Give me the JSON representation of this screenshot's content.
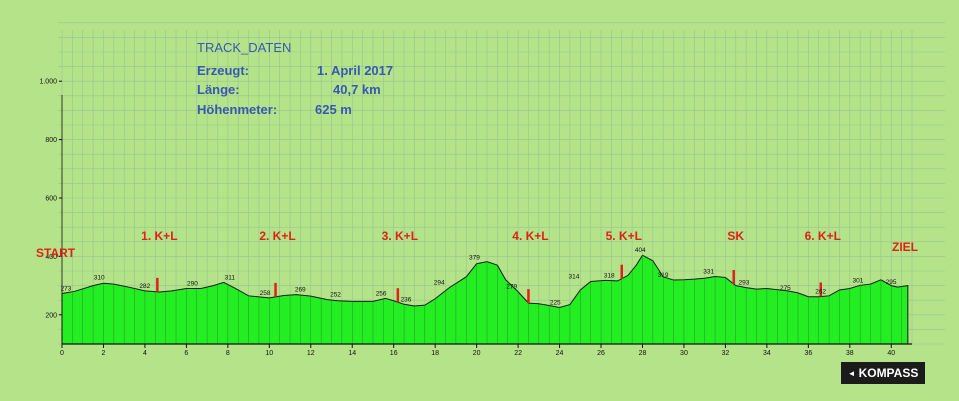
{
  "info": {
    "title": "TRACK_DATEN",
    "created_label": "Erzeugt:",
    "created_value": "1. April 2017",
    "length_label": "Länge:",
    "length_value": "40,7 km",
    "elevation_label": "Höhenmeter:",
    "elevation_value": "625 m"
  },
  "brand": {
    "arrow_icon": "◄",
    "name": "KOMPASS"
  },
  "colors": {
    "background": "#b4e38a",
    "fill": "#22ee22",
    "grid": "#97c58d",
    "marker": "#e0211b",
    "info_text": "#3957b5"
  },
  "chart_data": {
    "type": "area",
    "title": "",
    "xlabel": "",
    "ylabel": "",
    "xlim": [
      0,
      41
    ],
    "ylim": [
      100,
      1100
    ],
    "x_ticks": [
      0,
      2,
      4,
      6,
      8,
      10,
      12,
      14,
      16,
      18,
      20,
      22,
      24,
      26,
      28,
      30,
      32,
      34,
      36,
      38,
      40
    ],
    "y_ticks": [
      {
        "value": 200,
        "label": "200"
      },
      {
        "value": 400,
        "label": "400"
      },
      {
        "value": 600,
        "label": "600"
      },
      {
        "value": 800,
        "label": "800"
      },
      {
        "value": 1000,
        "label": "1.000"
      }
    ],
    "grid": true,
    "profile": {
      "x": [
        0,
        0.6,
        1.5,
        2.0,
        2.5,
        3.2,
        4.0,
        4.7,
        5.3,
        6.0,
        6.7,
        7.3,
        7.8,
        8.3,
        9.0,
        10.0,
        10.7,
        11.3,
        12.0,
        12.8,
        13.3,
        14.0,
        15.0,
        15.6,
        16.0,
        16.5,
        17.0,
        17.5,
        18.0,
        18.7,
        19.5,
        20.0,
        20.5,
        21.0,
        21.4,
        22.0,
        22.5,
        23.0,
        23.5,
        24.0,
        24.5,
        25.0,
        25.5,
        26.2,
        26.8,
        27.3,
        27.7,
        28.0,
        28.5,
        29.0,
        29.5,
        30.0,
        30.5,
        31.0,
        31.5,
        32.0,
        32.5,
        33.0,
        33.5,
        34.0,
        35.0,
        35.5,
        36.0,
        36.5,
        37.0,
        37.5,
        38.0,
        38.5,
        39.0,
        39.5,
        40.0,
        40.3,
        40.8
      ],
      "y": [
        273,
        280,
        300,
        308,
        305,
        295,
        282,
        278,
        282,
        290,
        290,
        300,
        311,
        293,
        265,
        258,
        266,
        269,
        264,
        252,
        248,
        246,
        246,
        256,
        248,
        236,
        230,
        233,
        255,
        294,
        330,
        375,
        382,
        370,
        320,
        279,
        240,
        238,
        232,
        225,
        235,
        285,
        314,
        318,
        316,
        335,
        370,
        404,
        385,
        330,
        319,
        320,
        322,
        325,
        331,
        328,
        300,
        293,
        288,
        290,
        282,
        275,
        262,
        262,
        265,
        285,
        290,
        301,
        305,
        320,
        300,
        295,
        300
      ]
    },
    "point_labels": [
      {
        "x": 0,
        "y": 273,
        "label": "273"
      },
      {
        "x": 1.6,
        "y": 310,
        "label": "310"
      },
      {
        "x": 3.8,
        "y": 282,
        "label": "282"
      },
      {
        "x": 6.1,
        "y": 290,
        "label": "290"
      },
      {
        "x": 7.9,
        "y": 311,
        "label": "311"
      },
      {
        "x": 9.6,
        "y": 258,
        "label": "258"
      },
      {
        "x": 11.3,
        "y": 269,
        "label": "269"
      },
      {
        "x": 13.0,
        "y": 252,
        "label": "252"
      },
      {
        "x": 15.2,
        "y": 256,
        "label": "256"
      },
      {
        "x": 16.4,
        "y": 236,
        "label": "236"
      },
      {
        "x": 18.0,
        "y": 294,
        "label": "294"
      },
      {
        "x": 19.7,
        "y": 379,
        "label": "379"
      },
      {
        "x": 21.5,
        "y": 279,
        "label": "279"
      },
      {
        "x": 23.6,
        "y": 225,
        "label": "225"
      },
      {
        "x": 24.5,
        "y": 314,
        "label": "314"
      },
      {
        "x": 26.2,
        "y": 318,
        "label": "318"
      },
      {
        "x": 27.7,
        "y": 404,
        "label": "404"
      },
      {
        "x": 28.8,
        "y": 319,
        "label": "319"
      },
      {
        "x": 31.0,
        "y": 331,
        "label": "331"
      },
      {
        "x": 32.7,
        "y": 293,
        "label": "293"
      },
      {
        "x": 34.7,
        "y": 275,
        "label": "275"
      },
      {
        "x": 36.4,
        "y": 262,
        "label": "262"
      },
      {
        "x": 38.2,
        "y": 301,
        "label": "301"
      },
      {
        "x": 39.8,
        "y": 295,
        "label": "295"
      }
    ],
    "markers": [
      {
        "x": 4.6,
        "label": "1. K+L"
      },
      {
        "x": 10.3,
        "label": "2. K+L"
      },
      {
        "x": 16.2,
        "label": "3. K+L"
      },
      {
        "x": 22.5,
        "label": "4. K+L"
      },
      {
        "x": 27.0,
        "label": "5. K+L"
      },
      {
        "x": 32.4,
        "label": "SK"
      },
      {
        "x": 36.6,
        "label": "6. K+L"
      }
    ],
    "start_label": "START",
    "end_label": "ZIEL"
  }
}
